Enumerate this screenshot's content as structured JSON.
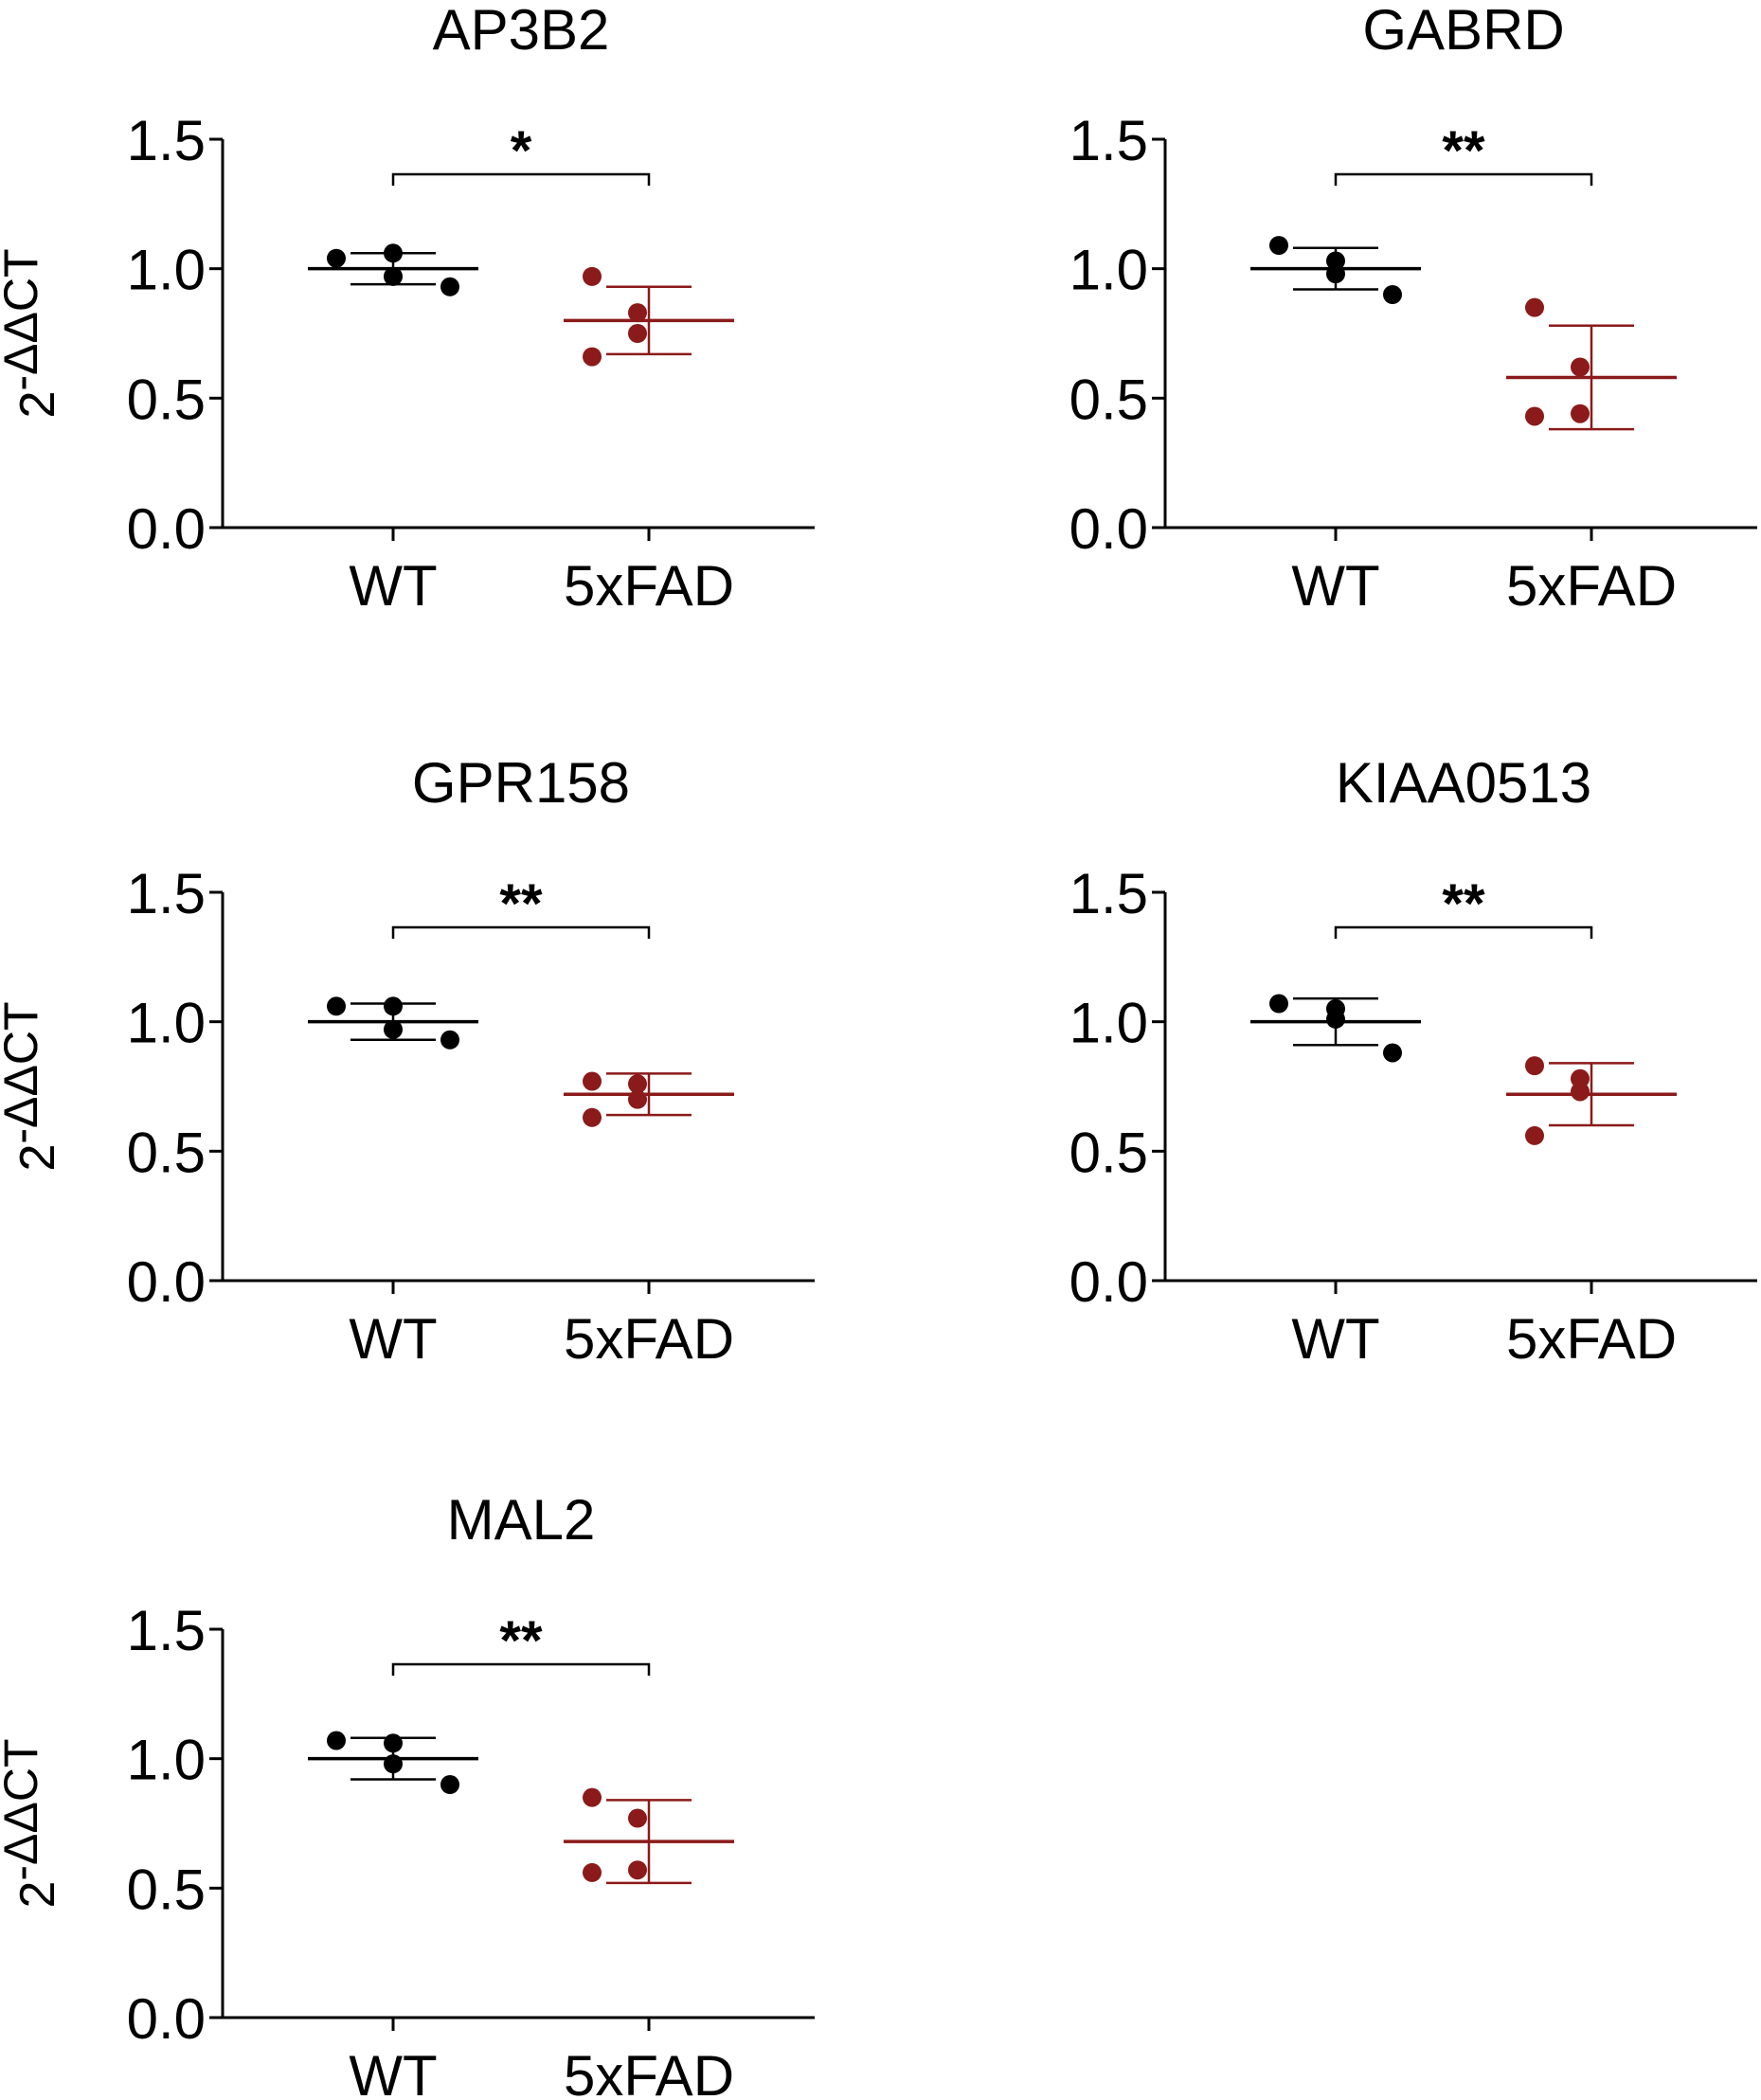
{
  "figure": {
    "colors": {
      "wt": "#000000",
      "fad": "#8b1a1a",
      "axis": "#000000"
    }
  },
  "chart_data": [
    {
      "type": "scatter",
      "title": "AP3B2",
      "ylabel": "2-ΔΔCT",
      "ylabel_base": "2",
      "ylabel_sup": "-ΔΔCT",
      "categories": [
        "WT",
        "5xFAD"
      ],
      "ylim": [
        0.0,
        1.5
      ],
      "yticks": [
        "0.0",
        "0.5",
        "1.0",
        "1.5"
      ],
      "significance": "*",
      "series": [
        {
          "name": "WT",
          "values": [
            1.04,
            1.06,
            0.97,
            0.93
          ],
          "mean": 1.0,
          "sd": 0.06
        },
        {
          "name": "5xFAD",
          "values": [
            0.97,
            0.83,
            0.75,
            0.66
          ],
          "mean": 0.8,
          "sd": 0.13
        }
      ]
    },
    {
      "type": "scatter",
      "title": "GABRD",
      "ylabel": "2-ΔΔCT",
      "ylabel_base": "2",
      "ylabel_sup": "-ΔΔCT",
      "categories": [
        "WT",
        "5xFAD"
      ],
      "ylim": [
        0.0,
        1.5
      ],
      "yticks": [
        "0.0",
        "0.5",
        "1.0",
        "1.5"
      ],
      "significance": "**",
      "series": [
        {
          "name": "WT",
          "values": [
            1.09,
            1.03,
            0.98,
            0.9
          ],
          "mean": 1.0,
          "sd": 0.08
        },
        {
          "name": "5xFAD",
          "values": [
            0.85,
            0.62,
            0.44,
            0.43
          ],
          "mean": 0.58,
          "sd": 0.2
        }
      ]
    },
    {
      "type": "scatter",
      "title": "GPR158",
      "ylabel": "2-ΔΔCT",
      "ylabel_base": "2",
      "ylabel_sup": "-ΔΔCT",
      "categories": [
        "WT",
        "5xFAD"
      ],
      "ylim": [
        0.0,
        1.5
      ],
      "yticks": [
        "0.0",
        "0.5",
        "1.0",
        "1.5"
      ],
      "significance": "**",
      "series": [
        {
          "name": "WT",
          "values": [
            1.06,
            1.06,
            0.97,
            0.93
          ],
          "mean": 1.0,
          "sd": 0.07
        },
        {
          "name": "5xFAD",
          "values": [
            0.77,
            0.76,
            0.7,
            0.63
          ],
          "mean": 0.72,
          "sd": 0.08
        }
      ]
    },
    {
      "type": "scatter",
      "title": "KIAA0513",
      "ylabel": "2-ΔΔCT",
      "ylabel_base": "2",
      "ylabel_sup": "-ΔΔCT",
      "categories": [
        "WT",
        "5xFAD"
      ],
      "ylim": [
        0.0,
        1.5
      ],
      "yticks": [
        "0.0",
        "0.5",
        "1.0",
        "1.5"
      ],
      "significance": "**",
      "series": [
        {
          "name": "WT",
          "values": [
            1.07,
            1.05,
            1.01,
            0.88
          ],
          "mean": 1.0,
          "sd": 0.09
        },
        {
          "name": "5xFAD",
          "values": [
            0.83,
            0.78,
            0.73,
            0.56
          ],
          "mean": 0.72,
          "sd": 0.12
        }
      ]
    },
    {
      "type": "scatter",
      "title": "MAL2",
      "ylabel": "2-ΔΔCT",
      "ylabel_base": "2",
      "ylabel_sup": "-ΔΔCT",
      "categories": [
        "WT",
        "5xFAD"
      ],
      "ylim": [
        0.0,
        1.5
      ],
      "yticks": [
        "0.0",
        "0.5",
        "1.0",
        "1.5"
      ],
      "significance": "**",
      "series": [
        {
          "name": "WT",
          "values": [
            1.07,
            1.06,
            0.98,
            0.9
          ],
          "mean": 1.0,
          "sd": 0.08
        },
        {
          "name": "5xFAD",
          "values": [
            0.85,
            0.77,
            0.57,
            0.56
          ],
          "mean": 0.68,
          "sd": 0.16
        }
      ]
    }
  ]
}
